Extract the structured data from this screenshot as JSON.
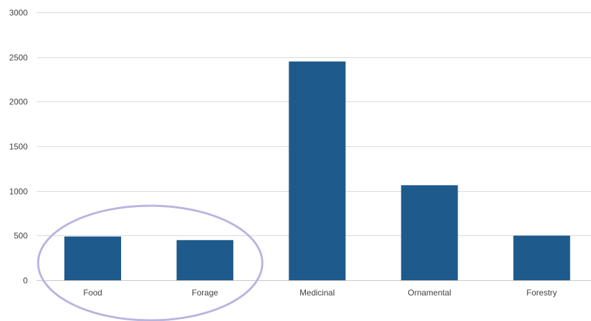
{
  "chart_data": {
    "type": "bar",
    "categories": [
      "Food",
      "Forage",
      "Medicinal",
      "Ornamental",
      "Forestry"
    ],
    "values": [
      490,
      450,
      2450,
      1065,
      500
    ],
    "title": "",
    "xlabel": "",
    "ylabel": "",
    "ylim": [
      0,
      3000
    ],
    "yticks": [
      0,
      500,
      1000,
      1500,
      2000,
      2500,
      3000
    ],
    "grid": true,
    "legend": "none",
    "colors": {
      "bar": "#1f5a8c",
      "highlight_ellipse": "#b9b4e0",
      "gridline": "#d9d9d9",
      "text": "#404040"
    },
    "annotations": [
      {
        "type": "ellipse-highlight",
        "covers_categories": [
          "Food",
          "Forage"
        ]
      }
    ]
  }
}
